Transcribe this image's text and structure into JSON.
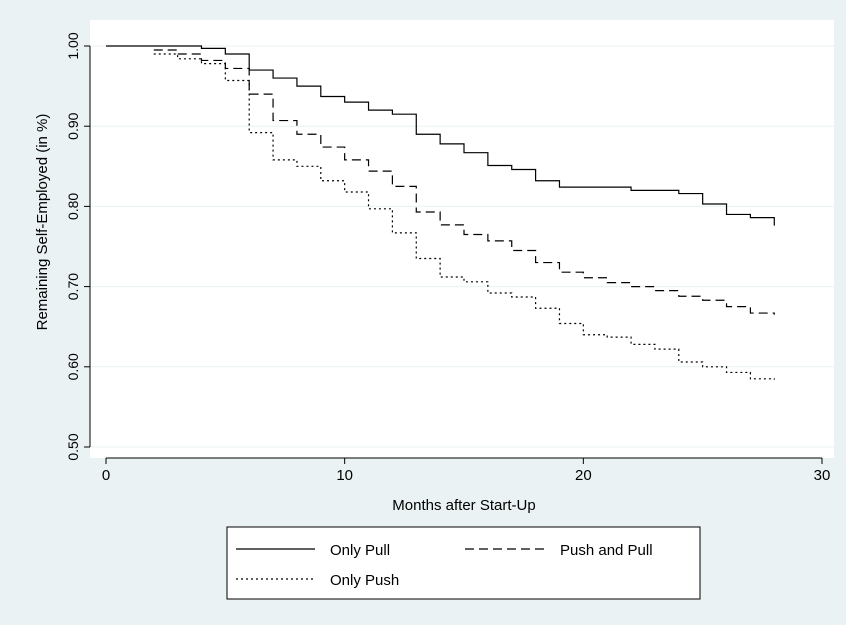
{
  "chart_data": {
    "type": "line",
    "title": "",
    "xlabel": "Months after Start-Up",
    "ylabel": "Remaining Self-Employed (in %)",
    "xlim": [
      0,
      30
    ],
    "ylim": [
      0.5,
      1.0
    ],
    "x_ticks": [
      0,
      10,
      20,
      30
    ],
    "x_tick_labels": [
      "0",
      "10",
      "20",
      "30"
    ],
    "y_ticks": [
      0.5,
      0.6,
      0.7,
      0.8,
      0.9,
      1.0
    ],
    "y_tick_labels": [
      "0.50",
      "0.60",
      "0.70",
      "0.80",
      "0.90",
      "1.00"
    ],
    "grid": "horizontal",
    "step": true,
    "legend_position": "bottom",
    "series": [
      {
        "name": "Only Pull",
        "style": "solid",
        "color": "#000000",
        "x": [
          0,
          4,
          5,
          6,
          7,
          8,
          9,
          10,
          11,
          12,
          13,
          14,
          15,
          16,
          17,
          18,
          19,
          20,
          21,
          22,
          23,
          24,
          25,
          26,
          27,
          28
        ],
        "y": [
          1.0,
          0.997,
          0.99,
          0.97,
          0.96,
          0.95,
          0.937,
          0.93,
          0.92,
          0.915,
          0.89,
          0.878,
          0.867,
          0.851,
          0.846,
          0.832,
          0.824,
          0.824,
          0.824,
          0.82,
          0.82,
          0.816,
          0.803,
          0.79,
          0.786,
          0.776
        ]
      },
      {
        "name": "Push and Pull",
        "style": "dashed",
        "color": "#000000",
        "x": [
          2,
          3,
          4,
          5,
          6,
          7,
          8,
          9,
          10,
          11,
          12,
          13,
          14,
          15,
          16,
          17,
          18,
          19,
          20,
          21,
          22,
          23,
          24,
          25,
          26,
          27,
          28
        ],
        "y": [
          0.995,
          0.99,
          0.982,
          0.972,
          0.94,
          0.907,
          0.89,
          0.874,
          0.858,
          0.844,
          0.825,
          0.793,
          0.777,
          0.765,
          0.757,
          0.745,
          0.73,
          0.718,
          0.711,
          0.705,
          0.7,
          0.695,
          0.688,
          0.683,
          0.675,
          0.667,
          0.665
        ]
      },
      {
        "name": "Only Push",
        "style": "dotted",
        "color": "#000000",
        "x": [
          2,
          3,
          4,
          5,
          6,
          7,
          8,
          9,
          10,
          11,
          12,
          13,
          14,
          15,
          16,
          17,
          18,
          19,
          20,
          21,
          22,
          23,
          24,
          25,
          26,
          27,
          28
        ],
        "y": [
          0.99,
          0.984,
          0.978,
          0.957,
          0.892,
          0.858,
          0.85,
          0.832,
          0.818,
          0.797,
          0.767,
          0.735,
          0.712,
          0.706,
          0.692,
          0.687,
          0.673,
          0.654,
          0.64,
          0.637,
          0.628,
          0.622,
          0.606,
          0.6,
          0.593,
          0.585,
          0.584
        ]
      }
    ]
  },
  "legend": {
    "rows": [
      [
        "Only Pull",
        "Push and Pull"
      ],
      [
        "Only Push"
      ]
    ]
  },
  "colors": {
    "page_background": "#eaf2f3",
    "plot_background": "#ffffff",
    "grid": "#eaf2f3",
    "ink": "#000000"
  }
}
